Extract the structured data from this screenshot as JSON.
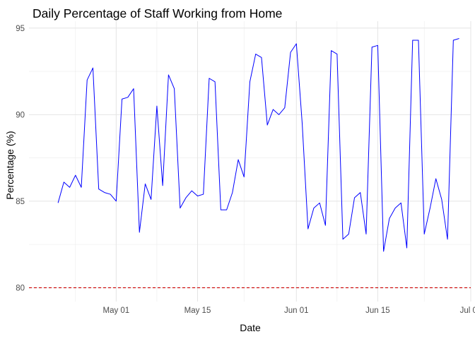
{
  "chart_data": {
    "type": "line",
    "title": "Daily Percentage of Staff Working from Home",
    "xlabel": "Date",
    "ylabel": "Percentage (%)",
    "xlim": [
      "2024-04-16",
      "2024-07-01"
    ],
    "ylim": [
      79.2,
      95.4
    ],
    "x_ticks": [
      {
        "date": "2024-05-01",
        "label": "May 01"
      },
      {
        "date": "2024-05-15",
        "label": "May 15"
      },
      {
        "date": "2024-06-01",
        "label": "Jun 01"
      },
      {
        "date": "2024-06-15",
        "label": "Jun 15"
      },
      {
        "date": "2024-07-01",
        "label": "Jul 01"
      }
    ],
    "x_minor_ticks": [
      "2024-04-24",
      "2024-05-08",
      "2024-05-23",
      "2024-06-08",
      "2024-06-23"
    ],
    "y_ticks": [
      80,
      85,
      90,
      95
    ],
    "y_minor_ticks": [
      82.5,
      87.5,
      92.5
    ],
    "grid": true,
    "legend": "none",
    "line_color": "#0000ff",
    "reference_line": {
      "y": 80,
      "color": "#cd0000",
      "style": "dashed"
    },
    "series": [
      {
        "x": [
          "2024-04-21",
          "2024-04-22",
          "2024-04-23",
          "2024-04-24",
          "2024-04-25",
          "2024-04-26",
          "2024-04-27",
          "2024-04-28",
          "2024-04-29",
          "2024-04-30",
          "2024-05-01",
          "2024-05-02",
          "2024-05-03",
          "2024-05-04",
          "2024-05-05",
          "2024-05-06",
          "2024-05-07",
          "2024-05-08",
          "2024-05-09",
          "2024-05-10",
          "2024-05-11",
          "2024-05-12",
          "2024-05-13",
          "2024-05-14",
          "2024-05-15",
          "2024-05-16",
          "2024-05-17",
          "2024-05-18",
          "2024-05-19",
          "2024-05-20",
          "2024-05-21",
          "2024-05-22",
          "2024-05-23",
          "2024-05-24",
          "2024-05-25",
          "2024-05-26",
          "2024-05-27",
          "2024-05-28",
          "2024-05-29",
          "2024-05-30",
          "2024-05-31",
          "2024-06-01",
          "2024-06-02",
          "2024-06-03",
          "2024-06-04",
          "2024-06-05",
          "2024-06-06",
          "2024-06-07",
          "2024-06-08",
          "2024-06-09",
          "2024-06-10",
          "2024-06-11",
          "2024-06-12",
          "2024-06-13",
          "2024-06-14",
          "2024-06-15",
          "2024-06-16",
          "2024-06-17",
          "2024-06-18",
          "2024-06-19",
          "2024-06-20",
          "2024-06-21",
          "2024-06-22",
          "2024-06-23",
          "2024-06-24",
          "2024-06-25",
          "2024-06-26",
          "2024-06-27",
          "2024-06-28",
          "2024-06-29"
        ],
        "values": [
          84.9,
          86.1,
          85.8,
          86.5,
          85.8,
          92.0,
          92.7,
          85.7,
          85.5,
          85.4,
          85.0,
          90.9,
          91.0,
          91.5,
          83.2,
          86.0,
          85.1,
          90.5,
          85.9,
          92.3,
          91.5,
          84.6,
          85.2,
          85.6,
          85.3,
          85.4,
          92.1,
          91.9,
          84.5,
          84.5,
          85.5,
          87.4,
          86.4,
          91.9,
          93.5,
          93.3,
          89.4,
          90.3,
          90.0,
          90.4,
          93.6,
          94.1,
          89.5,
          83.4,
          84.6,
          84.9,
          83.6,
          93.7,
          93.5,
          82.8,
          83.1,
          85.2,
          85.5,
          83.1,
          93.9,
          94.0,
          82.1,
          84.0,
          84.6,
          84.9,
          82.3,
          94.3,
          94.3,
          83.1,
          84.6,
          86.3,
          85.1,
          82.8,
          94.3,
          94.4
        ]
      }
    ]
  }
}
